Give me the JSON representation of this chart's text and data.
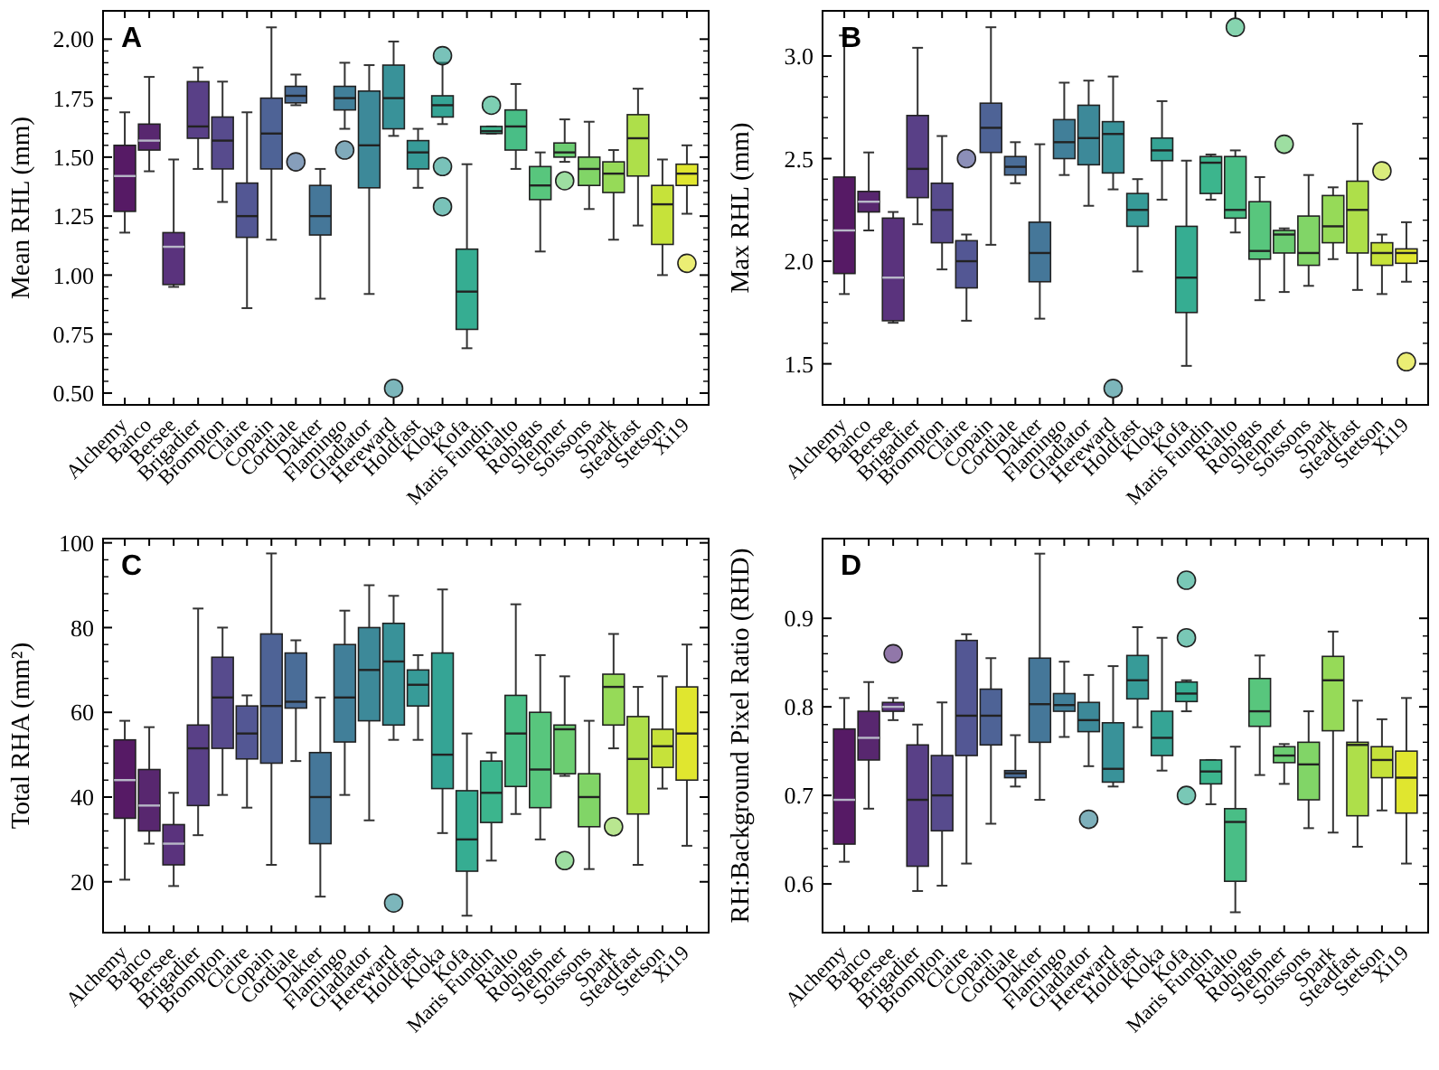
{
  "chart_data": [
    {
      "type": "box",
      "title": "A",
      "ylabel": "Mean RHL (mm)",
      "categories": [
        "Alchemy",
        "Banco",
        "Bersee",
        "Brigadier",
        "Brompton",
        "Claire",
        "Copain",
        "Cordiale",
        "Dakter",
        "Flamingo",
        "Gladiator",
        "Hereward",
        "Holdfast",
        "Kloka",
        "Kofa",
        "Maris Fundin",
        "Rialto",
        "Robigus",
        "Sleipner",
        "Soissons",
        "Spark",
        "Steadfast",
        "Stetson",
        "Xi19"
      ],
      "colors": [
        "#440154",
        "#46105f",
        "#481d6f",
        "#472b7a",
        "#453781",
        "#404588",
        "#3b528b",
        "#365d8d",
        "#31688e",
        "#2c718e",
        "#287c8e",
        "#24868e",
        "#21908d",
        "#1f9a8a",
        "#20a486",
        "#27ad81",
        "#35b779",
        "#46c06f",
        "#5cc863",
        "#73d056",
        "#8bd646",
        "#a5db36",
        "#c0df25",
        "#dde318"
      ],
      "ylim": [
        0.45,
        2.12
      ],
      "yticks": [
        {
          "value": 0.5,
          "label": "0.50"
        },
        {
          "value": 0.75,
          "label": "0.75"
        },
        {
          "value": 1.0,
          "label": "1.00"
        },
        {
          "value": 1.25,
          "label": "1.25"
        },
        {
          "value": 1.5,
          "label": "1.50"
        },
        {
          "value": 1.75,
          "label": "1.75"
        },
        {
          "value": 2.0,
          "label": "2.00"
        }
      ],
      "boxes": [
        {
          "low": 1.18,
          "q1": 1.27,
          "median": 1.42,
          "q3": 1.55,
          "high": 1.69
        },
        {
          "low": 1.44,
          "q1": 1.53,
          "median": 1.57,
          "q3": 1.64,
          "high": 1.84
        },
        {
          "low": 0.95,
          "q1": 0.96,
          "median": 1.12,
          "q3": 1.18,
          "high": 1.49
        },
        {
          "low": 1.45,
          "q1": 1.58,
          "median": 1.63,
          "q3": 1.82,
          "high": 1.88
        },
        {
          "low": 1.31,
          "q1": 1.45,
          "median": 1.57,
          "q3": 1.67,
          "high": 1.82
        },
        {
          "low": 0.86,
          "q1": 1.16,
          "median": 1.25,
          "q3": 1.39,
          "high": 1.69
        },
        {
          "low": 1.15,
          "q1": 1.45,
          "median": 1.6,
          "q3": 1.75,
          "high": 2.05
        },
        {
          "low": 1.72,
          "q1": 1.73,
          "median": 1.76,
          "q3": 1.8,
          "high": 1.85,
          "outliers": [
            1.48
          ]
        },
        {
          "low": 0.9,
          "q1": 1.17,
          "median": 1.25,
          "q3": 1.38,
          "high": 1.45
        },
        {
          "low": 1.62,
          "q1": 1.7,
          "median": 1.75,
          "q3": 1.8,
          "high": 1.9,
          "outliers": [
            1.53
          ]
        },
        {
          "low": 0.92,
          "q1": 1.37,
          "median": 1.55,
          "q3": 1.78,
          "high": 1.89
        },
        {
          "low": 1.59,
          "q1": 1.62,
          "median": 1.75,
          "q3": 1.89,
          "high": 1.99,
          "outliers": [
            0.52
          ]
        },
        {
          "low": 1.37,
          "q1": 1.45,
          "median": 1.52,
          "q3": 1.57,
          "high": 1.62
        },
        {
          "low": 1.64,
          "q1": 1.67,
          "median": 1.72,
          "q3": 1.76,
          "high": 1.9,
          "outliers": [
            1.46,
            1.29,
            1.93
          ]
        },
        {
          "low": 0.69,
          "q1": 0.77,
          "median": 0.93,
          "q3": 1.11,
          "high": 1.47
        },
        {
          "low": 1.6,
          "q1": 1.6,
          "median": 1.61,
          "q3": 1.63,
          "high": 1.63,
          "outliers": [
            1.72
          ]
        },
        {
          "low": 1.45,
          "q1": 1.53,
          "median": 1.63,
          "q3": 1.7,
          "high": 1.81
        },
        {
          "low": 1.1,
          "q1": 1.32,
          "median": 1.38,
          "q3": 1.46,
          "high": 1.52
        },
        {
          "low": 1.48,
          "q1": 1.5,
          "median": 1.52,
          "q3": 1.56,
          "high": 1.66,
          "outliers": [
            1.4
          ]
        },
        {
          "low": 1.28,
          "q1": 1.38,
          "median": 1.45,
          "q3": 1.5,
          "high": 1.65
        },
        {
          "low": 1.15,
          "q1": 1.35,
          "median": 1.43,
          "q3": 1.48,
          "high": 1.53
        },
        {
          "low": 1.21,
          "q1": 1.42,
          "median": 1.58,
          "q3": 1.68,
          "high": 1.79
        },
        {
          "low": 1.0,
          "q1": 1.13,
          "median": 1.3,
          "q3": 1.38,
          "high": 1.49
        },
        {
          "low": 1.26,
          "q1": 1.38,
          "median": 1.43,
          "q3": 1.47,
          "high": 1.55,
          "outliers": [
            1.05
          ]
        }
      ]
    },
    {
      "type": "box",
      "title": "B",
      "ylabel": "Max RHL (mm)",
      "categories": [
        "Alchemy",
        "Banco",
        "Bersee",
        "Brigadier",
        "Brompton",
        "Claire",
        "Copain",
        "Cordiale",
        "Dakter",
        "Flamingo",
        "Gladiator",
        "Hereward",
        "Holdfast",
        "Kloka",
        "Kofa",
        "Maris Fundin",
        "Rialto",
        "Robigus",
        "Sleipner",
        "Soissons",
        "Spark",
        "Steadfast",
        "Stetson",
        "Xi19"
      ],
      "colors": [
        "#440154",
        "#46105f",
        "#481d6f",
        "#472b7a",
        "#453781",
        "#404588",
        "#3b528b",
        "#365d8d",
        "#31688e",
        "#2c718e",
        "#287c8e",
        "#24868e",
        "#21908d",
        "#1f9a8a",
        "#20a486",
        "#27ad81",
        "#35b779",
        "#46c06f",
        "#5cc863",
        "#73d056",
        "#8bd646",
        "#a5db36",
        "#c0df25",
        "#dde318"
      ],
      "ylim": [
        1.3,
        3.22
      ],
      "yticks": [
        1.5,
        {
          "value": 2,
          "label": "2.0"
        },
        2.5,
        {
          "value": 3,
          "label": "3.0"
        }
      ],
      "boxes": [
        {
          "low": 1.84,
          "q1": 1.94,
          "median": 2.15,
          "q3": 2.41,
          "high": 3.1
        },
        {
          "low": 2.15,
          "q1": 2.24,
          "median": 2.29,
          "q3": 2.34,
          "high": 2.53
        },
        {
          "low": 1.7,
          "q1": 1.71,
          "median": 1.92,
          "q3": 2.21,
          "high": 2.24
        },
        {
          "low": 2.18,
          "q1": 2.31,
          "median": 2.45,
          "q3": 2.71,
          "high": 3.04
        },
        {
          "low": 1.96,
          "q1": 2.09,
          "median": 2.25,
          "q3": 2.38,
          "high": 2.61
        },
        {
          "low": 1.71,
          "q1": 1.87,
          "median": 2.0,
          "q3": 2.1,
          "high": 2.13,
          "outliers": [
            2.5
          ]
        },
        {
          "low": 2.08,
          "q1": 2.53,
          "median": 2.65,
          "q3": 2.77,
          "high": 3.14
        },
        {
          "low": 2.38,
          "q1": 2.42,
          "median": 2.46,
          "q3": 2.51,
          "high": 2.58
        },
        {
          "low": 1.72,
          "q1": 1.9,
          "median": 2.04,
          "q3": 2.19,
          "high": 2.57
        },
        {
          "low": 2.42,
          "q1": 2.5,
          "median": 2.58,
          "q3": 2.69,
          "high": 2.87
        },
        {
          "low": 2.27,
          "q1": 2.47,
          "median": 2.6,
          "q3": 2.76,
          "high": 2.88
        },
        {
          "low": 2.35,
          "q1": 2.43,
          "median": 2.62,
          "q3": 2.68,
          "high": 2.9,
          "outliers": [
            1.38
          ]
        },
        {
          "low": 1.95,
          "q1": 2.17,
          "median": 2.25,
          "q3": 2.33,
          "high": 2.4
        },
        {
          "low": 2.3,
          "q1": 2.49,
          "median": 2.54,
          "q3": 2.6,
          "high": 2.78
        },
        {
          "low": 1.49,
          "q1": 1.75,
          "median": 1.92,
          "q3": 2.17,
          "high": 2.49
        },
        {
          "low": 2.3,
          "q1": 2.33,
          "median": 2.48,
          "q3": 2.51,
          "high": 2.52
        },
        {
          "low": 2.14,
          "q1": 2.21,
          "median": 2.25,
          "q3": 2.51,
          "high": 2.54,
          "outliers": [
            3.14
          ]
        },
        {
          "low": 1.81,
          "q1": 2.01,
          "median": 2.05,
          "q3": 2.29,
          "high": 2.41
        },
        {
          "low": 1.85,
          "q1": 2.04,
          "median": 2.13,
          "q3": 2.15,
          "high": 2.16,
          "outliers": [
            2.57
          ]
        },
        {
          "low": 1.88,
          "q1": 1.98,
          "median": 2.04,
          "q3": 2.22,
          "high": 2.42
        },
        {
          "low": 2.01,
          "q1": 2.09,
          "median": 2.17,
          "q3": 2.32,
          "high": 2.36
        },
        {
          "low": 1.86,
          "q1": 2.04,
          "median": 2.25,
          "q3": 2.39,
          "high": 2.67
        },
        {
          "low": 1.84,
          "q1": 1.98,
          "median": 2.04,
          "q3": 2.09,
          "high": 2.13,
          "outliers": [
            2.44
          ]
        },
        {
          "low": 1.9,
          "q1": 1.99,
          "median": 2.04,
          "q3": 2.06,
          "high": 2.19,
          "outliers": [
            1.51
          ]
        }
      ]
    },
    {
      "type": "box",
      "title": "C",
      "ylabel": "Total RHA (mm²)",
      "categories": [
        "Alchemy",
        "Banco",
        "Bersee",
        "Brigadier",
        "Brompton",
        "Claire",
        "Copain",
        "Cordiale",
        "Dakter",
        "Flamingo",
        "Gladiator",
        "Hereward",
        "Holdfast",
        "Kloka",
        "Kofa",
        "Maris Fundin",
        "Rialto",
        "Robigus",
        "Sleipner",
        "Soissons",
        "Spark",
        "Steadfast",
        "Stetson",
        "Xi19"
      ],
      "colors": [
        "#440154",
        "#46105f",
        "#481d6f",
        "#472b7a",
        "#453781",
        "#404588",
        "#3b528b",
        "#365d8d",
        "#31688e",
        "#2c718e",
        "#287c8e",
        "#24868e",
        "#21908d",
        "#1f9a8a",
        "#20a486",
        "#27ad81",
        "#35b779",
        "#46c06f",
        "#5cc863",
        "#73d056",
        "#8bd646",
        "#a5db36",
        "#c0df25",
        "#dde318"
      ],
      "ylim": [
        8,
        101
      ],
      "yticks": [
        20,
        40,
        60,
        80,
        100
      ],
      "boxes": [
        {
          "low": 20.5,
          "q1": 35,
          "median": 44,
          "q3": 53.5,
          "high": 58
        },
        {
          "low": 29,
          "q1": 32,
          "median": 38,
          "q3": 46.5,
          "high": 56.5
        },
        {
          "low": 19,
          "q1": 24,
          "median": 29,
          "q3": 33.5,
          "high": 41
        },
        {
          "low": 31,
          "q1": 38,
          "median": 51.5,
          "q3": 57,
          "high": 84.5
        },
        {
          "low": 40.5,
          "q1": 51.5,
          "median": 63.5,
          "q3": 73,
          "high": 80
        },
        {
          "low": 37.5,
          "q1": 49,
          "median": 55,
          "q3": 61.5,
          "high": 64
        },
        {
          "low": 24,
          "q1": 48,
          "median": 61.5,
          "q3": 78.5,
          "high": 97.5
        },
        {
          "low": 48.5,
          "q1": 61,
          "median": 62.5,
          "q3": 74,
          "high": 77
        },
        {
          "low": 16.5,
          "q1": 29,
          "median": 40,
          "q3": 50.5,
          "high": 63.5
        },
        {
          "low": 40.5,
          "q1": 53,
          "median": 63.5,
          "q3": 76,
          "high": 84
        },
        {
          "low": 34.5,
          "q1": 58,
          "median": 70,
          "q3": 80,
          "high": 90
        },
        {
          "low": 53.5,
          "q1": 57,
          "median": 72,
          "q3": 81,
          "high": 87.5,
          "outliers": [
            15
          ]
        },
        {
          "low": 53.5,
          "q1": 61.5,
          "median": 66.5,
          "q3": 70,
          "high": 73.5
        },
        {
          "low": 31.5,
          "q1": 42,
          "median": 50,
          "q3": 74,
          "high": 89
        },
        {
          "low": 12,
          "q1": 22.5,
          "median": 30,
          "q3": 41.5,
          "high": 55
        },
        {
          "low": 25,
          "q1": 34,
          "median": 41,
          "q3": 48.5,
          "high": 50.5
        },
        {
          "low": 36,
          "q1": 42.5,
          "median": 55,
          "q3": 64,
          "high": 85.5
        },
        {
          "low": 30,
          "q1": 37.5,
          "median": 46.5,
          "q3": 60,
          "high": 73.5
        },
        {
          "low": 45,
          "q1": 45.5,
          "median": 56,
          "q3": 57,
          "high": 68.5,
          "outliers": [
            25
          ]
        },
        {
          "low": 23,
          "q1": 33,
          "median": 40,
          "q3": 45.5,
          "high": 58
        },
        {
          "low": 51.5,
          "q1": 57,
          "median": 66,
          "q3": 69,
          "high": 78.5,
          "outliers": [
            33
          ]
        },
        {
          "low": 24,
          "q1": 36,
          "median": 49,
          "q3": 59,
          "high": 66
        },
        {
          "low": 42,
          "q1": 47,
          "median": 52,
          "q3": 56,
          "high": 68.5
        },
        {
          "low": 28.5,
          "q1": 44,
          "median": 55,
          "q3": 66,
          "high": 76
        }
      ]
    },
    {
      "type": "box",
      "title": "D",
      "ylabel": "RH:Background Pixel Ratio (RHD)",
      "categories": [
        "Alchemy",
        "Banco",
        "Bersee",
        "Brigadier",
        "Brompton",
        "Claire",
        "Copain",
        "Cordiale",
        "Dakter",
        "Flamingo",
        "Gladiator",
        "Hereward",
        "Holdfast",
        "Kloka",
        "Kofa",
        "Maris Fundin",
        "Rialto",
        "Robigus",
        "Sleipner",
        "Soissons",
        "Spark",
        "Steadfast",
        "Stetson",
        "Xi19"
      ],
      "colors": [
        "#440154",
        "#46105f",
        "#481d6f",
        "#472b7a",
        "#453781",
        "#404588",
        "#3b528b",
        "#365d8d",
        "#31688e",
        "#2c718e",
        "#287c8e",
        "#24868e",
        "#21908d",
        "#1f9a8a",
        "#20a486",
        "#27ad81",
        "#35b779",
        "#46c06f",
        "#5cc863",
        "#73d056",
        "#8bd646",
        "#a5db36",
        "#c0df25",
        "#dde318"
      ],
      "ylim": [
        0.545,
        0.99
      ],
      "yticks": [
        0.6,
        0.7,
        0.8,
        0.9
      ],
      "boxes": [
        {
          "low": 0.625,
          "q1": 0.645,
          "median": 0.695,
          "q3": 0.775,
          "high": 0.81
        },
        {
          "low": 0.685,
          "q1": 0.74,
          "median": 0.765,
          "q3": 0.795,
          "high": 0.828
        },
        {
          "low": 0.785,
          "q1": 0.795,
          "median": 0.8,
          "q3": 0.805,
          "high": 0.81,
          "outliers": [
            0.86
          ]
        },
        {
          "low": 0.592,
          "q1": 0.62,
          "median": 0.695,
          "q3": 0.757,
          "high": 0.78
        },
        {
          "low": 0.598,
          "q1": 0.66,
          "median": 0.7,
          "q3": 0.745,
          "high": 0.805
        },
        {
          "low": 0.623,
          "q1": 0.745,
          "median": 0.79,
          "q3": 0.875,
          "high": 0.882
        },
        {
          "low": 0.668,
          "q1": 0.757,
          "median": 0.79,
          "q3": 0.82,
          "high": 0.855
        },
        {
          "low": 0.71,
          "q1": 0.72,
          "median": 0.725,
          "q3": 0.728,
          "high": 0.768
        },
        {
          "low": 0.695,
          "q1": 0.76,
          "median": 0.803,
          "q3": 0.855,
          "high": 0.973
        },
        {
          "low": 0.766,
          "q1": 0.795,
          "median": 0.802,
          "q3": 0.815,
          "high": 0.851
        },
        {
          "low": 0.733,
          "q1": 0.772,
          "median": 0.785,
          "q3": 0.805,
          "high": 0.836,
          "outliers": [
            0.673
          ]
        },
        {
          "low": 0.71,
          "q1": 0.715,
          "median": 0.73,
          "q3": 0.782,
          "high": 0.846
        },
        {
          "low": 0.777,
          "q1": 0.809,
          "median": 0.83,
          "q3": 0.858,
          "high": 0.89
        },
        {
          "low": 0.728,
          "q1": 0.745,
          "median": 0.765,
          "q3": 0.795,
          "high": 0.878
        },
        {
          "low": 0.795,
          "q1": 0.806,
          "median": 0.815,
          "q3": 0.828,
          "high": 0.83,
          "outliers": [
            0.943,
            0.878,
            0.7
          ]
        },
        {
          "low": 0.69,
          "q1": 0.713,
          "median": 0.727,
          "q3": 0.74,
          "high": 0.74
        },
        {
          "low": 0.568,
          "q1": 0.603,
          "median": 0.67,
          "q3": 0.685,
          "high": 0.755
        },
        {
          "low": 0.723,
          "q1": 0.778,
          "median": 0.795,
          "q3": 0.832,
          "high": 0.858
        },
        {
          "low": 0.713,
          "q1": 0.737,
          "median": 0.745,
          "q3": 0.755,
          "high": 0.758
        },
        {
          "low": 0.663,
          "q1": 0.695,
          "median": 0.735,
          "q3": 0.76,
          "high": 0.795
        },
        {
          "low": 0.658,
          "q1": 0.773,
          "median": 0.83,
          "q3": 0.857,
          "high": 0.885
        },
        {
          "low": 0.642,
          "q1": 0.677,
          "median": 0.757,
          "q3": 0.76,
          "high": 0.807
        },
        {
          "low": 0.683,
          "q1": 0.72,
          "median": 0.74,
          "q3": 0.755,
          "high": 0.786
        },
        {
          "low": 0.623,
          "q1": 0.68,
          "median": 0.72,
          "q3": 0.75,
          "high": 0.81
        }
      ]
    }
  ]
}
